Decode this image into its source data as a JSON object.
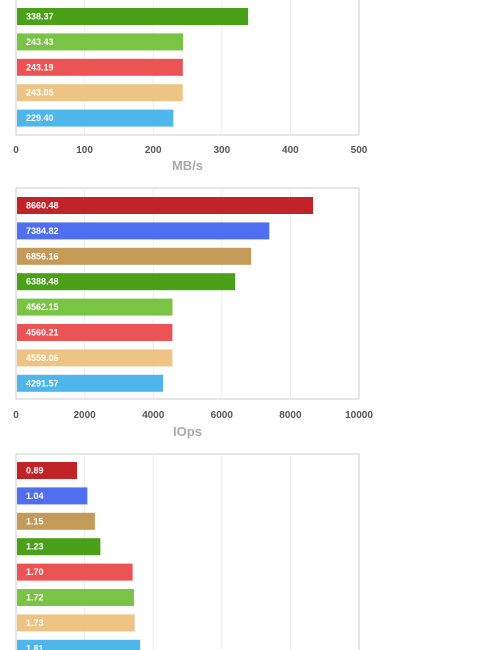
{
  "chart_data": [
    {
      "type": "bar",
      "orientation": "horizontal",
      "xlabel": "MB/s",
      "xlim": [
        0,
        500
      ],
      "xticks": [
        0,
        100,
        200,
        300,
        400,
        500
      ],
      "values": [
        338.37,
        243.43,
        243.19,
        243.05,
        229.4
      ],
      "labels": [
        "338.37",
        "243.43",
        "243.19",
        "243.05",
        "229.40"
      ],
      "colors": [
        "#4aa019",
        "#79c445",
        "#ec5355",
        "#eec485",
        "#4eb6ea"
      ],
      "grid": true
    },
    {
      "type": "bar",
      "orientation": "horizontal",
      "xlabel": "IOps",
      "xlim": [
        0,
        10000
      ],
      "xticks": [
        0,
        2000,
        4000,
        6000,
        8000,
        10000
      ],
      "values": [
        8660.48,
        7384.82,
        6856.16,
        6388.48,
        4562.15,
        4560.21,
        4559.06,
        4291.57
      ],
      "labels": [
        "8660.48",
        "7384.82",
        "6856.16",
        "6388.48",
        "4562.15",
        "4560.21",
        "4559.06",
        "4291.57"
      ],
      "colors": [
        "#c02428",
        "#4f6ff0",
        "#c39a57",
        "#4aa019",
        "#79c445",
        "#ec5355",
        "#eec485",
        "#4eb6ea"
      ],
      "grid": true
    },
    {
      "type": "bar",
      "orientation": "horizontal",
      "xlabel": "",
      "xlim": [
        0,
        5
      ],
      "values": [
        0.89,
        1.04,
        1.15,
        1.23,
        1.7,
        1.72,
        1.73,
        1.81
      ],
      "labels": [
        "0.89",
        "1.04",
        "1.15",
        "1.23",
        "1.70",
        "1.72",
        "1.73",
        "1.81"
      ],
      "colors": [
        "#c02428",
        "#4f6ff0",
        "#c39a57",
        "#4aa019",
        "#ec5355",
        "#79c445",
        "#eec485",
        "#4eb6ea"
      ],
      "grid": true
    }
  ]
}
